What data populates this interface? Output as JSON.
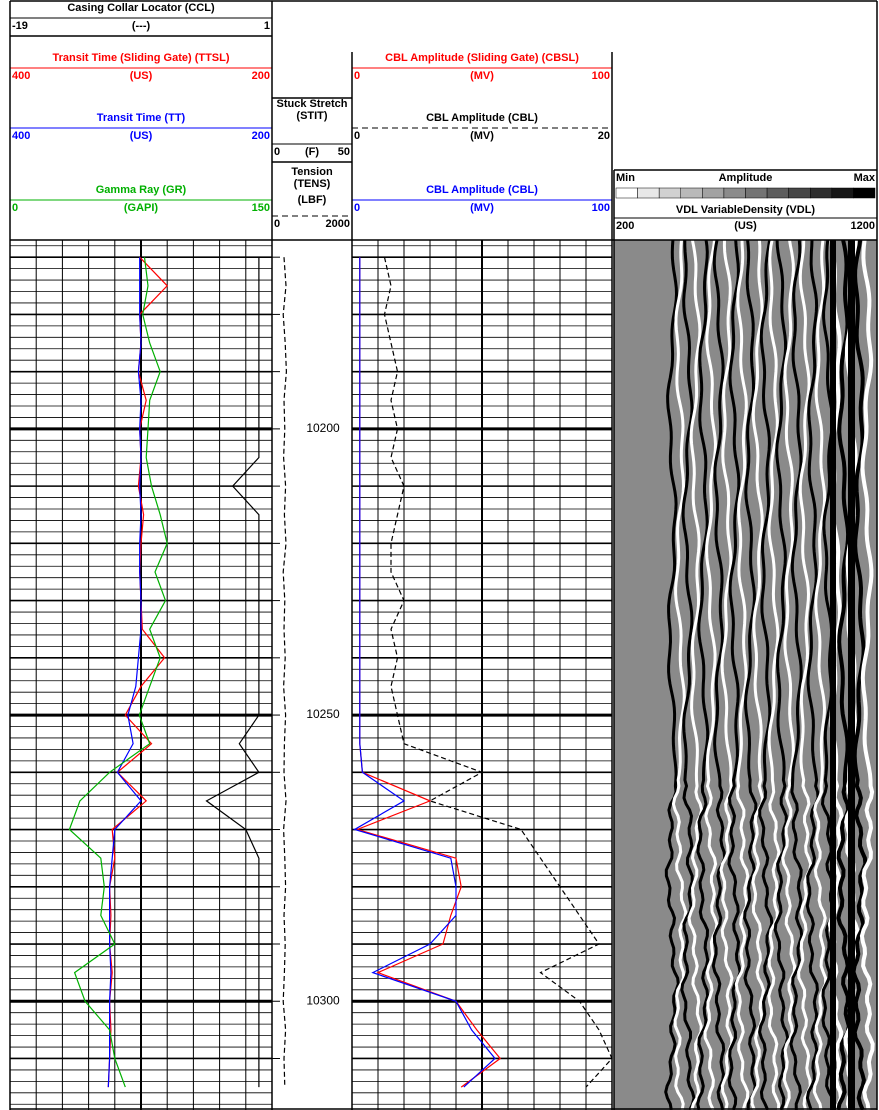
{
  "chart_data": {
    "type": "line",
    "depth": [
      10170,
      10175,
      10180,
      10185,
      10190,
      10195,
      10200,
      10205,
      10210,
      10215,
      10220,
      10225,
      10230,
      10235,
      10240,
      10245,
      10250,
      10255,
      10260,
      10265,
      10270,
      10275,
      10280,
      10285,
      10290,
      10295,
      10300,
      10305,
      10310,
      10315
    ],
    "ylim": [
      10167,
      10319
    ],
    "yticks": [
      10200,
      10250,
      10300
    ],
    "yminor": [
      10168,
      10170,
      10172,
      10174,
      10176,
      10178,
      10180,
      10182,
      10184,
      10186,
      10188,
      10190,
      10192,
      10194,
      10196,
      10198,
      10200,
      10202,
      10204,
      10206,
      10208,
      10210,
      10212,
      10214,
      10216,
      10218,
      10220,
      10222,
      10224,
      10226,
      10228,
      10230,
      10232,
      10234,
      10236,
      10238,
      10240,
      10242,
      10244,
      10246,
      10248,
      10250,
      10252,
      10254,
      10256,
      10258,
      10260,
      10262,
      10264,
      10266,
      10268,
      10270,
      10272,
      10274,
      10276,
      10278,
      10280,
      10282,
      10284,
      10286,
      10288,
      10290,
      10292,
      10294,
      10296,
      10298,
      10300,
      10302,
      10304,
      10306,
      10308,
      10310,
      10312,
      10314,
      10316,
      10318
    ],
    "grid": true,
    "tracks": [
      {
        "series": [
          {
            "name": "Casing Collar Locator (CCL)",
            "unit": "(---)",
            "xlim": [
              -19,
              1
            ],
            "color": "#000000",
            "values": [
              0,
              0,
              0,
              0,
              0,
              0,
              0,
              0,
              -2,
              0,
              0,
              0,
              0,
              0,
              0,
              0,
              0,
              -1.5,
              0,
              -4,
              -1,
              0,
              0,
              0,
              0,
              0,
              0,
              0,
              0,
              0
            ]
          },
          {
            "name": "Transit Time (Sliding Gate) (TTSL)",
            "unit": "(US)",
            "xlim": [
              400,
              200
            ],
            "color": "#ff0000",
            "values": [
              301,
              280,
              301,
              300,
              302,
              296,
              301,
              300,
              302,
              298,
              300,
              301,
              300,
              299,
              282,
              300,
              312,
              292,
              318,
              296,
              322,
              320,
              324,
              323,
              324,
              322,
              324,
              323,
              324,
              325
            ]
          },
          {
            "name": "Transit Time (TT)",
            "unit": "(US)",
            "xlim": [
              400,
              200
            ],
            "color": "#0000ff",
            "values": [
              301,
              301,
              301,
              300,
              302,
              300,
              301,
              300,
              301,
              300,
              301,
              301,
              300,
              300,
              302,
              304,
              310,
              306,
              318,
              300,
              320,
              322,
              324,
              324,
              324,
              323,
              324,
              324,
              324,
              325
            ]
          },
          {
            "name": "Gamma Ray (GR)",
            "unit": "(GAPI)",
            "xlim": [
              0,
              150
            ],
            "color": "#00b000",
            "values": [
              77,
              79,
              76,
              80,
              86,
              80,
              79,
              78,
              81,
              86,
              90,
              83,
              89,
              80,
              86,
              80,
              74,
              80,
              57,
              40,
              34,
              52,
              54,
              52,
              60,
              37,
              43,
              57,
              60,
              66
            ]
          }
        ]
      },
      {
        "series": [
          {
            "name": "Stuck Stretch (STIT)",
            "unit": "(F)",
            "xlim": [
              0,
              50
            ],
            "color": "#000000"
          },
          {
            "name": "Tension (TENS)",
            "unit": "(LBF)",
            "xlim": [
              0,
              2000
            ],
            "color": "#000000",
            "dash": true,
            "values": [
              300,
              350,
              280,
              330,
              360,
              300,
              320,
              290,
              340,
              310,
              350,
              280,
              320,
              300,
              330,
              290,
              340,
              310,
              300,
              350,
              290,
              320,
              340,
              300,
              330,
              310,
              280,
              340,
              300,
              320
            ]
          }
        ]
      },
      {
        "series": [
          {
            "name": "CBL Amplitude (Sliding Gate) (CBSL)",
            "unit": "(MV)",
            "xlim": [
              0,
              100
            ],
            "color": "#ff0000",
            "values": [
              3,
              3,
              3,
              3,
              3,
              3,
              3,
              3,
              3,
              3,
              3,
              3,
              3,
              3,
              3,
              3,
              3,
              3,
              4,
              30,
              2,
              40,
              42,
              38,
              35,
              10,
              40,
              48,
              57,
              42
            ]
          },
          {
            "name": "CBL Amplitude (CBL)",
            "unit": "(MV)",
            "xlim": [
              0,
              20
            ],
            "color": "#000000",
            "dash": true,
            "values": [
              2.5,
              3,
              2.5,
              3,
              3.5,
              3,
              3.5,
              3,
              4,
              3.5,
              3,
              3,
              4,
              3,
              3.5,
              3,
              3.5,
              4,
              10,
              6,
              13,
              14.5,
              16,
              17.5,
              19,
              14.5,
              17.5,
              19,
              20,
              18
            ]
          },
          {
            "name": "CBL Amplitude (CBL)",
            "unit": "(MV)",
            "xlim": [
              0,
              100
            ],
            "color": "#0000ff",
            "values": [
              3,
              3,
              3,
              3,
              3,
              3,
              3,
              3,
              3,
              3,
              3,
              3,
              3,
              3,
              3,
              3,
              3,
              3,
              4,
              20,
              1,
              38,
              40,
              40,
              30,
              8,
              40,
              46,
              55,
              43
            ]
          }
        ]
      },
      {
        "amplitude": {
          "title": "Amplitude",
          "min": "Min",
          "max": "Max"
        },
        "series": [
          {
            "name": "VDL VariableDensity (VDL)",
            "unit": "(US)",
            "xlim": [
              200,
              1200
            ],
            "color": "#000000"
          }
        ]
      }
    ]
  }
}
